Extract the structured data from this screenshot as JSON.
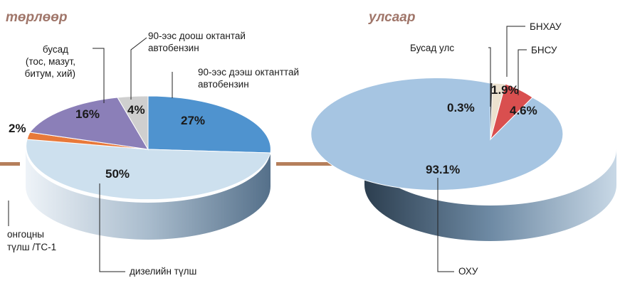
{
  "chart_data": [
    {
      "type": "pie",
      "title": "төрлөөр",
      "slices": [
        {
          "label": "90-ээс дээш октанттай автобензин",
          "value": 27,
          "pct_label": "27%",
          "color": "#4f93cf"
        },
        {
          "label": "дизелийн түлш",
          "value": 50,
          "pct_label": "50%",
          "color": "#cde0ee"
        },
        {
          "label": "онгоцны түлш /ТС-1",
          "value": 2,
          "pct_label": "2%",
          "color": "#e8793a"
        },
        {
          "label": "бусад (тос, мазут, битум, хий)",
          "value": 16,
          "pct_label": "16%",
          "color": "#8b7fb8"
        },
        {
          "label": "90-ээс доош октантай автобензин",
          "value": 4,
          "pct_label": "4%",
          "color": "#cfcfcf"
        }
      ]
    },
    {
      "type": "pie",
      "title": "улсаар",
      "slices": [
        {
          "label": "БНХАУ",
          "value": 1.9,
          "pct_label": "1.9%",
          "color": "#ece2cf"
        },
        {
          "label": "БНСУ",
          "value": 4.6,
          "pct_label": "4.6%",
          "color": "#d94f4f"
        },
        {
          "label": "ОХУ",
          "value": 93.1,
          "pct_label": "93.1%",
          "color": "#a6c5e2"
        },
        {
          "label": "Бусад улс",
          "value": 0.3,
          "pct_label": "0.3%",
          "color": "#3a3a3a"
        }
      ]
    }
  ],
  "labels": {
    "left": {
      "title": "төрлөөр",
      "gasoline_low": [
        "90-ээс доош октантай",
        "автобензин"
      ],
      "gasoline_high": [
        "90-ээс дээш октанттай",
        "автобензин"
      ],
      "other": [
        "бусад",
        "(тос, мазут,",
        "битум, хий)"
      ],
      "jet": [
        "онгоцны",
        "түлш /ТС-1"
      ],
      "diesel": "дизелийн түлш"
    },
    "right": {
      "title": "улсаар",
      "china": "БНХАУ",
      "korea": "БНСУ",
      "others": "Бусад улс",
      "russia": "ОХУ"
    }
  }
}
